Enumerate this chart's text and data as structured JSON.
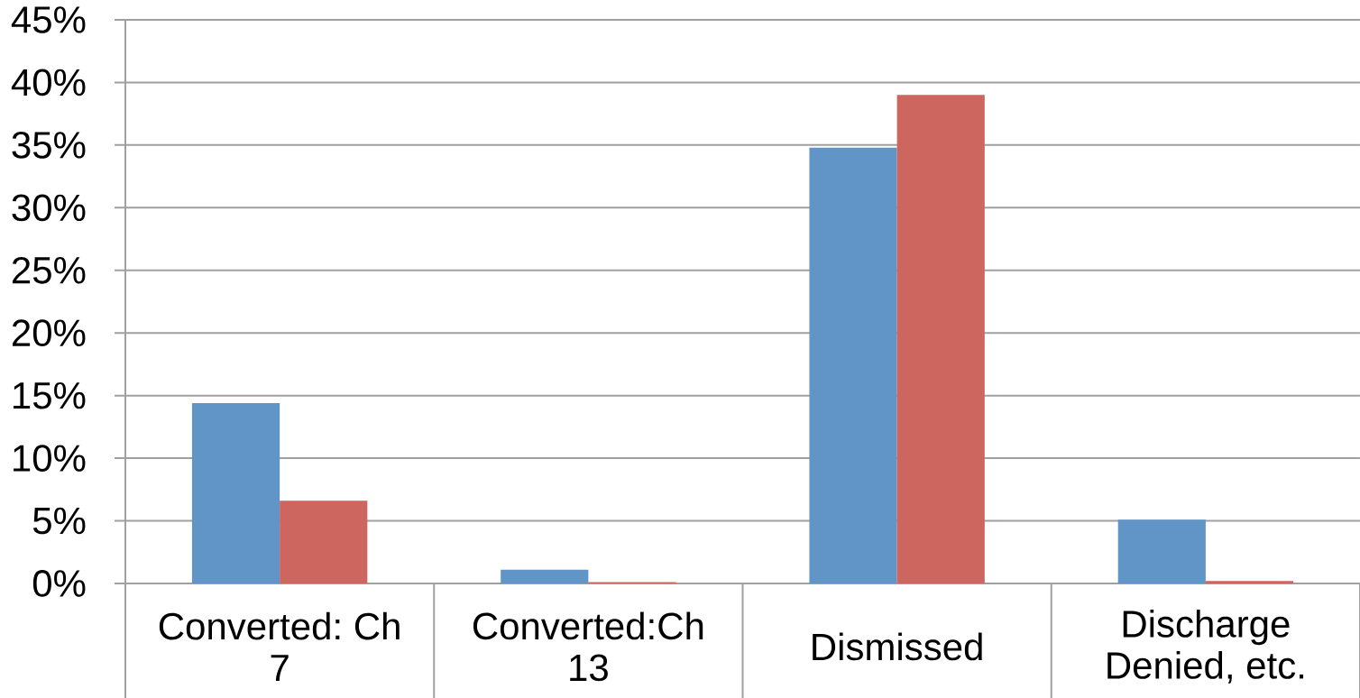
{
  "chart_data": {
    "type": "bar",
    "categories": [
      "Converted: Ch 7",
      "Converted:Ch 13",
      "Dismissed",
      "Discharge Denied, etc."
    ],
    "series": [
      {
        "color": "#6195c8",
        "values": [
          14.4,
          1.1,
          34.8,
          5.1
        ]
      },
      {
        "color": "#cc665e",
        "values": [
          6.6,
          0.1,
          39.0,
          0.2
        ]
      }
    ],
    "ylim": [
      0,
      45
    ],
    "yticks": [
      {
        "value": 0,
        "label": "0%"
      },
      {
        "value": 5,
        "label": "5%"
      },
      {
        "value": 10,
        "label": "10%"
      },
      {
        "value": 15,
        "label": "15%"
      },
      {
        "value": 20,
        "label": "20%"
      },
      {
        "value": 25,
        "label": "25%"
      },
      {
        "value": 30,
        "label": "30%"
      },
      {
        "value": 35,
        "label": "35%"
      },
      {
        "value": 40,
        "label": "40%"
      },
      {
        "value": 45,
        "label": "45%"
      }
    ],
    "grid": "y"
  }
}
